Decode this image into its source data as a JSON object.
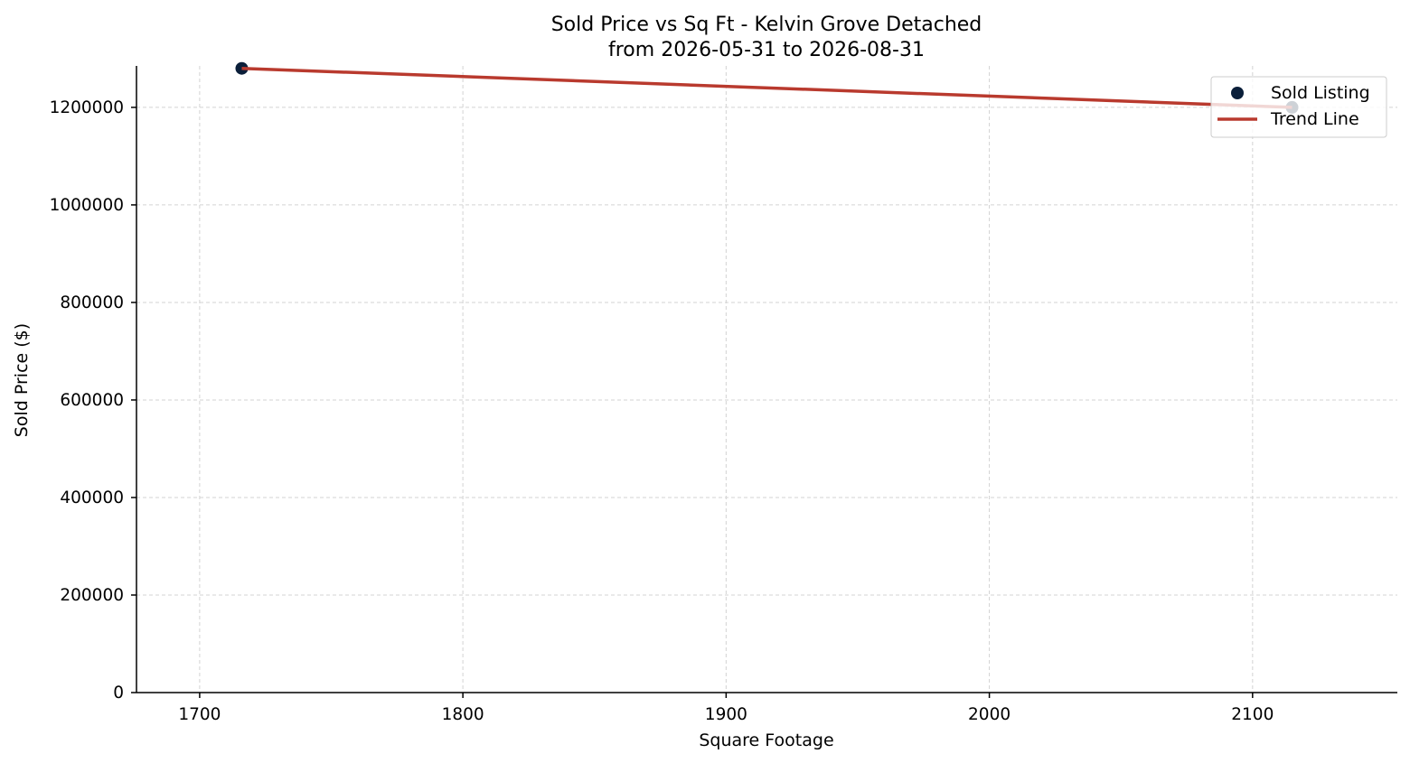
{
  "chart_data": {
    "type": "scatter",
    "title": "Sold Price vs Sq Ft - Kelvin Grove Detached",
    "subtitle": "from 2026-05-31 to 2026-08-31",
    "xlabel": "Square Footage",
    "ylabel": "Sold Price ($)",
    "xlim": [
      1676,
      2155
    ],
    "ylim": [
      0,
      1285000
    ],
    "x_ticks": [
      1700,
      1800,
      1900,
      2000,
      2100
    ],
    "y_ticks": [
      0,
      200000,
      400000,
      600000,
      800000,
      1000000,
      1200000
    ],
    "grid": true,
    "legend_position": "top-right",
    "series": [
      {
        "name": "Sold Listing",
        "kind": "scatter",
        "color": "#0b1f3a",
        "points": [
          {
            "x": 1716,
            "y": 1280000
          },
          {
            "x": 2115,
            "y": 1200000
          }
        ]
      },
      {
        "name": "Trend Line",
        "kind": "line",
        "color": "#b93a2e",
        "points": [
          {
            "x": 1716,
            "y": 1280000
          },
          {
            "x": 2115,
            "y": 1200000
          }
        ]
      }
    ]
  }
}
